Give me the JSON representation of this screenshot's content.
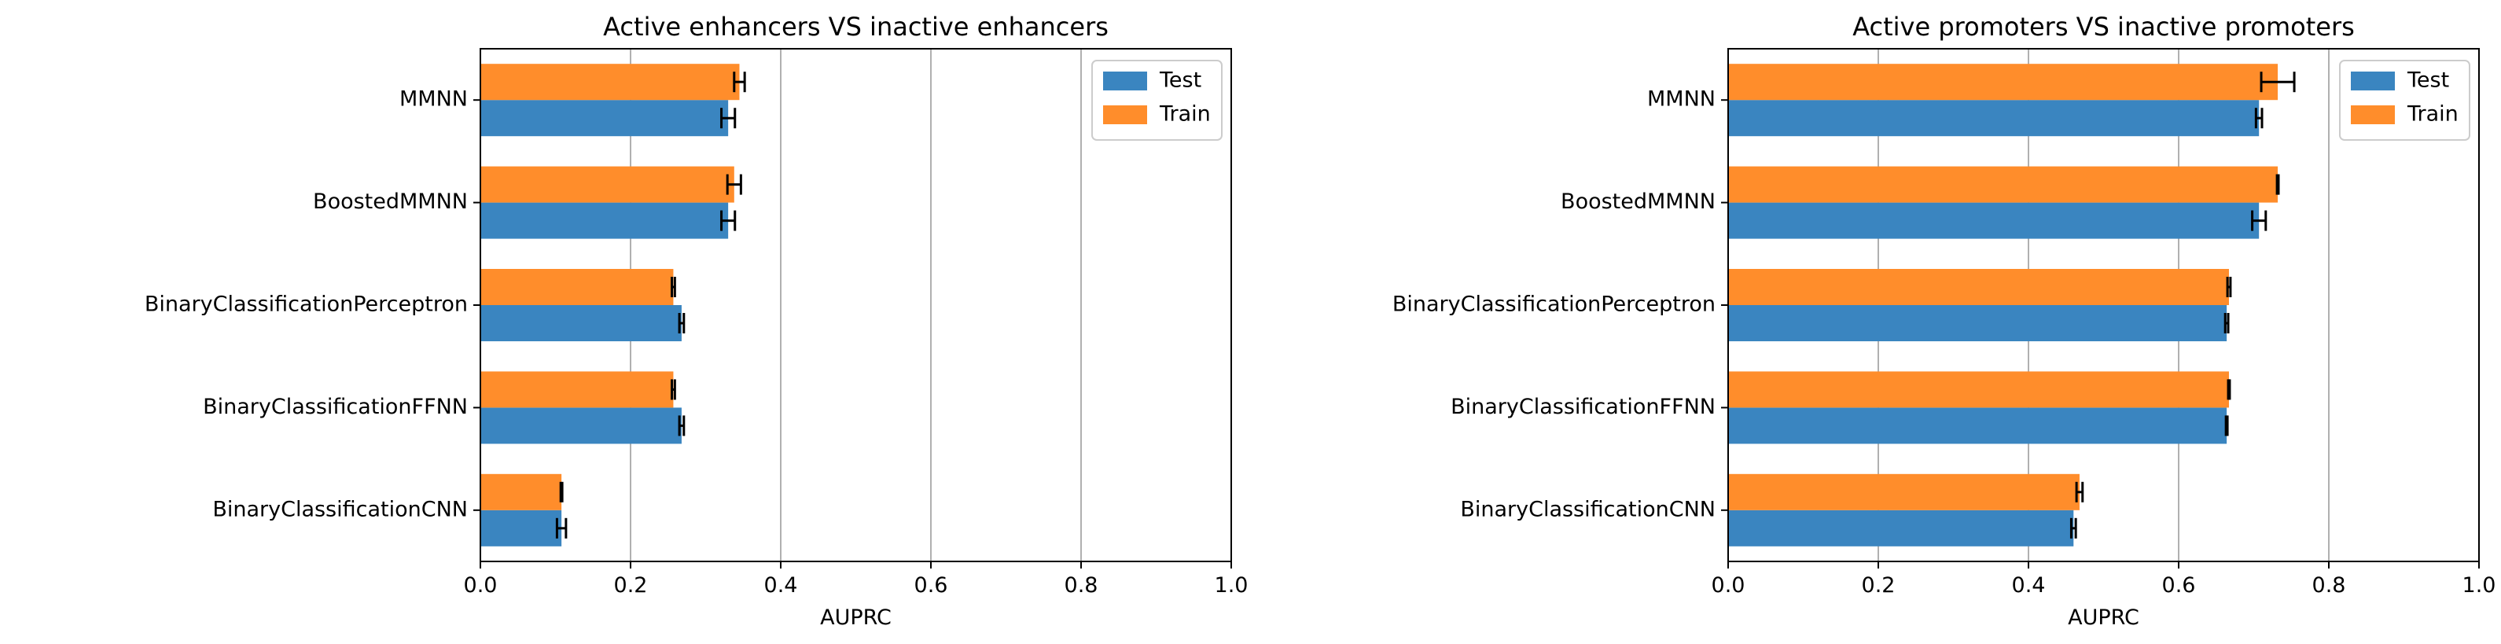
{
  "colors": {
    "test": "#3a85c0",
    "train": "#ff8d2b",
    "grid": "#b0b0b0",
    "axis": "#000000",
    "errorbar": "#000000"
  },
  "chart_data": [
    {
      "type": "bar",
      "orientation": "horizontal",
      "title": "Active enhancers VS inactive enhancers",
      "xlabel": "AUPRC",
      "ylabel": "",
      "xlim": [
        0,
        1.0
      ],
      "xticks": [
        "0.0",
        "0.2",
        "0.4",
        "0.6",
        "0.8",
        "1.0"
      ],
      "grid": "x",
      "legend_position": "top-right",
      "categories": [
        "MMNN",
        "BoostedMMNN",
        "BinaryClassificationPerceptron",
        "BinaryClassificationFFNN",
        "BinaryClassificationCNN"
      ],
      "series": [
        {
          "name": "Test",
          "color": "#3a85c0",
          "values": [
            0.33,
            0.33,
            0.268,
            0.268,
            0.108
          ],
          "errors": [
            0.009,
            0.009,
            0.003,
            0.003,
            0.006
          ]
        },
        {
          "name": "Train",
          "color": "#ff8d2b",
          "values": [
            0.345,
            0.338,
            0.257,
            0.257,
            0.108
          ],
          "errors": [
            0.007,
            0.009,
            0.002,
            0.002,
            0.001
          ]
        }
      ]
    },
    {
      "type": "bar",
      "orientation": "horizontal",
      "title": "Active promoters VS inactive promoters",
      "xlabel": "AUPRC",
      "ylabel": "",
      "xlim": [
        0,
        1.0
      ],
      "xticks": [
        "0.0",
        "0.2",
        "0.4",
        "0.6",
        "0.8",
        "1.0"
      ],
      "grid": "x",
      "legend_position": "top-right",
      "categories": [
        "MMNN",
        "BoostedMMNN",
        "BinaryClassificationPerceptron",
        "BinaryClassificationFFNN",
        "BinaryClassificationCNN"
      ],
      "series": [
        {
          "name": "Test",
          "color": "#3a85c0",
          "values": [
            0.707,
            0.707,
            0.664,
            0.664,
            0.46
          ],
          "errors": [
            0.004,
            0.009,
            0.002,
            0.001,
            0.003
          ]
        },
        {
          "name": "Train",
          "color": "#ff8d2b",
          "values": [
            0.732,
            0.732,
            0.667,
            0.667,
            0.468
          ],
          "errors": [
            0.022,
            0.001,
            0.002,
            0.001,
            0.004
          ]
        }
      ]
    }
  ]
}
